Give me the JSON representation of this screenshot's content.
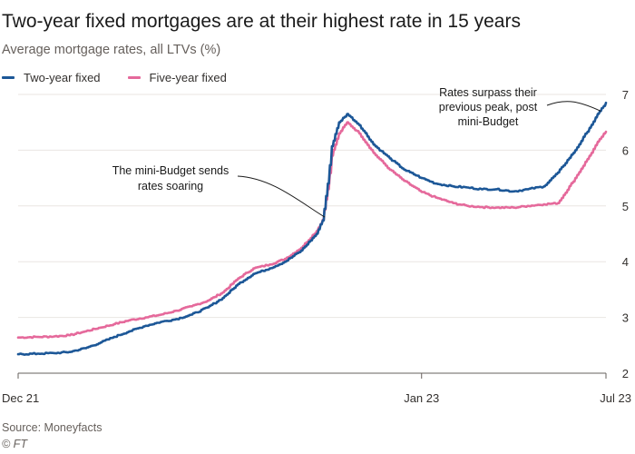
{
  "header": {
    "title": "Two-year fixed mortgages are at their highest rate in 15 years",
    "subtitle": "Average mortgage rates, all LTVs (%)"
  },
  "footer": {
    "source": "Source: Moneyfacts",
    "credit": "© FT"
  },
  "colors": {
    "two_year": "#1c5797",
    "five_year": "#e5699b",
    "grid": "#e9e6e2",
    "axis": "#66605c"
  },
  "chart_data": {
    "type": "line",
    "title": "Two-year fixed mortgages are at their highest rate in 15 years",
    "subtitle": "Average mortgage rates, all LTVs (%)",
    "xlabel": "",
    "ylabel": "",
    "x_axis": {
      "start": "2021-12-01",
      "end": "2023-07-01",
      "ticks": [
        {
          "date": "2021-12-01",
          "label": "Dec 21"
        },
        {
          "date": "2023-01-01",
          "label": "Jan 23"
        },
        {
          "date": "2023-07-01",
          "label": "Jul 23"
        }
      ]
    },
    "y_axis": {
      "range": [
        2,
        7
      ],
      "ticks": [
        2,
        3,
        4,
        5,
        6,
        7
      ],
      "position": "right"
    },
    "grid": true,
    "legend_position": "top-left",
    "series": [
      {
        "name": "Two-year fixed",
        "points": [
          [
            "2021-12-01",
            2.34
          ],
          [
            "2021-12-20",
            2.35
          ],
          [
            "2022-01-05",
            2.36
          ],
          [
            "2022-01-20",
            2.38
          ],
          [
            "2022-02-05",
            2.45
          ],
          [
            "2022-02-20",
            2.55
          ],
          [
            "2022-03-05",
            2.65
          ],
          [
            "2022-03-20",
            2.75
          ],
          [
            "2022-04-05",
            2.85
          ],
          [
            "2022-04-20",
            2.92
          ],
          [
            "2022-05-05",
            2.97
          ],
          [
            "2022-05-20",
            3.05
          ],
          [
            "2022-06-05",
            3.18
          ],
          [
            "2022-06-20",
            3.35
          ],
          [
            "2022-07-05",
            3.6
          ],
          [
            "2022-07-20",
            3.78
          ],
          [
            "2022-08-05",
            3.88
          ],
          [
            "2022-08-20",
            4.0
          ],
          [
            "2022-09-05",
            4.2
          ],
          [
            "2022-09-20",
            4.5
          ],
          [
            "2022-09-26",
            4.74
          ],
          [
            "2022-10-01",
            5.4
          ],
          [
            "2022-10-05",
            6.07
          ],
          [
            "2022-10-12",
            6.5
          ],
          [
            "2022-10-20",
            6.65
          ],
          [
            "2022-11-01",
            6.45
          ],
          [
            "2022-11-15",
            6.1
          ],
          [
            "2022-12-01",
            5.85
          ],
          [
            "2022-12-15",
            5.65
          ],
          [
            "2023-01-01",
            5.5
          ],
          [
            "2023-01-15",
            5.4
          ],
          [
            "2023-02-01",
            5.35
          ],
          [
            "2023-02-15",
            5.33
          ],
          [
            "2023-03-01",
            5.3
          ],
          [
            "2023-03-15",
            5.3
          ],
          [
            "2023-04-01",
            5.26
          ],
          [
            "2023-04-15",
            5.3
          ],
          [
            "2023-05-01",
            5.35
          ],
          [
            "2023-05-15",
            5.6
          ],
          [
            "2023-06-01",
            6.0
          ],
          [
            "2023-06-15",
            6.4
          ],
          [
            "2023-06-25",
            6.7
          ],
          [
            "2023-07-01",
            6.85
          ]
        ]
      },
      {
        "name": "Five-year fixed",
        "points": [
          [
            "2021-12-01",
            2.64
          ],
          [
            "2021-12-20",
            2.65
          ],
          [
            "2022-01-05",
            2.66
          ],
          [
            "2022-01-20",
            2.68
          ],
          [
            "2022-02-05",
            2.75
          ],
          [
            "2022-02-20",
            2.82
          ],
          [
            "2022-03-05",
            2.88
          ],
          [
            "2022-03-20",
            2.95
          ],
          [
            "2022-04-05",
            3.0
          ],
          [
            "2022-04-20",
            3.05
          ],
          [
            "2022-05-05",
            3.12
          ],
          [
            "2022-05-20",
            3.2
          ],
          [
            "2022-06-05",
            3.3
          ],
          [
            "2022-06-20",
            3.45
          ],
          [
            "2022-07-05",
            3.7
          ],
          [
            "2022-07-20",
            3.88
          ],
          [
            "2022-08-05",
            3.95
          ],
          [
            "2022-08-20",
            4.05
          ],
          [
            "2022-09-05",
            4.25
          ],
          [
            "2022-09-20",
            4.55
          ],
          [
            "2022-09-26",
            4.75
          ],
          [
            "2022-10-01",
            5.3
          ],
          [
            "2022-10-05",
            5.9
          ],
          [
            "2022-10-12",
            6.3
          ],
          [
            "2022-10-20",
            6.5
          ],
          [
            "2022-11-01",
            6.3
          ],
          [
            "2022-11-15",
            5.95
          ],
          [
            "2022-12-01",
            5.65
          ],
          [
            "2022-12-15",
            5.45
          ],
          [
            "2023-01-01",
            5.25
          ],
          [
            "2023-01-15",
            5.15
          ],
          [
            "2023-02-01",
            5.05
          ],
          [
            "2023-02-15",
            5.0
          ],
          [
            "2023-03-01",
            4.98
          ],
          [
            "2023-03-15",
            4.97
          ],
          [
            "2023-04-01",
            4.97
          ],
          [
            "2023-04-15",
            5.0
          ],
          [
            "2023-05-01",
            5.03
          ],
          [
            "2023-05-15",
            5.05
          ],
          [
            "2023-06-01",
            5.5
          ],
          [
            "2023-06-15",
            5.9
          ],
          [
            "2023-06-25",
            6.2
          ],
          [
            "2023-07-01",
            6.33
          ]
        ]
      }
    ],
    "annotations": [
      {
        "lines": [
          "The mini-Budget sends",
          "rates soaring"
        ],
        "target": [
          "2022-09-28",
          4.8
        ]
      },
      {
        "lines": [
          "Rates surpass their",
          "previous peak, post",
          "mini-Budget"
        ],
        "target": [
          "2023-06-26",
          6.7
        ]
      }
    ]
  }
}
